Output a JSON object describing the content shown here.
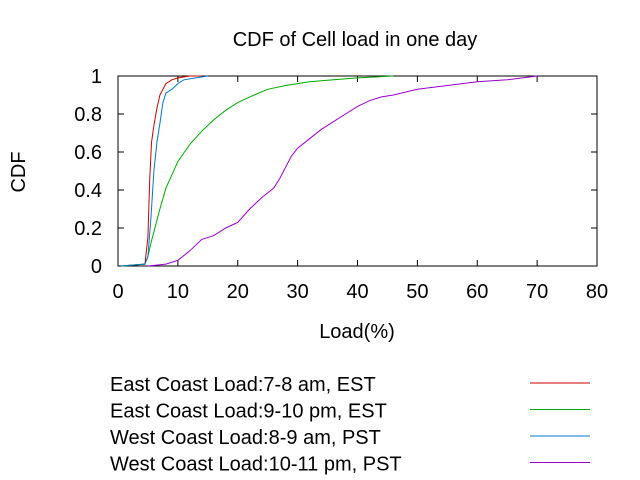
{
  "chart_data": {
    "type": "line",
    "title": "CDF of Cell load in one day",
    "xlabel": "Load(%)",
    "ylabel": "CDF",
    "xlim": [
      0,
      80
    ],
    "ylim": [
      0,
      1
    ],
    "x_ticks": [
      "0",
      "10",
      "20",
      "30",
      "40",
      "50",
      "60",
      "70",
      "80"
    ],
    "y_ticks": [
      "0",
      "0.2",
      "0.4",
      "0.6",
      "0.8",
      "1"
    ],
    "x_tick_values": [
      0,
      10,
      20,
      30,
      40,
      50,
      60,
      70,
      80
    ],
    "y_tick_values": [
      0,
      0.2,
      0.4,
      0.6,
      0.8,
      1
    ],
    "grid": false,
    "legend_position": "bottom",
    "series": [
      {
        "name": "East Coast Load:7-8 am, EST",
        "color": "#cc0000",
        "points": [
          [
            0.5,
            0
          ],
          [
            4.5,
            0.01
          ],
          [
            5,
            0.15
          ],
          [
            5.3,
            0.45
          ],
          [
            5.6,
            0.65
          ],
          [
            6,
            0.74
          ],
          [
            6.5,
            0.83
          ],
          [
            7,
            0.9
          ],
          [
            7.5,
            0.93
          ],
          [
            8,
            0.96
          ],
          [
            9,
            0.98
          ],
          [
            10,
            0.99
          ],
          [
            12,
            1
          ],
          [
            14,
            1
          ]
        ]
      },
      {
        "name": "East Coast Load:9-10 pm, EST",
        "color": "#00aa00",
        "points": [
          [
            0.5,
            0
          ],
          [
            4.5,
            0.01
          ],
          [
            5,
            0.05
          ],
          [
            5.5,
            0.12
          ],
          [
            6,
            0.18
          ],
          [
            7,
            0.3
          ],
          [
            8,
            0.41
          ],
          [
            9,
            0.48
          ],
          [
            10,
            0.55
          ],
          [
            12,
            0.64
          ],
          [
            14,
            0.71
          ],
          [
            16,
            0.77
          ],
          [
            18,
            0.82
          ],
          [
            20,
            0.86
          ],
          [
            22,
            0.89
          ],
          [
            25,
            0.93
          ],
          [
            28,
            0.95
          ],
          [
            32,
            0.97
          ],
          [
            36,
            0.98
          ],
          [
            40,
            0.99
          ],
          [
            46,
            1
          ]
        ]
      },
      {
        "name": "West Coast Load:8-9 am, PST",
        "color": "#0077cc",
        "points": [
          [
            0.5,
            0
          ],
          [
            4.5,
            0.01
          ],
          [
            5,
            0.05
          ],
          [
            5.5,
            0.25
          ],
          [
            6,
            0.5
          ],
          [
            6.5,
            0.65
          ],
          [
            7,
            0.75
          ],
          [
            7.5,
            0.86
          ],
          [
            8,
            0.91
          ],
          [
            9,
            0.93
          ],
          [
            10,
            0.96
          ],
          [
            11,
            0.98
          ],
          [
            13,
            0.99
          ],
          [
            15,
            1
          ]
        ]
      },
      {
        "name": "West Coast Load:10-11 pm, PST",
        "color": "#9900cc",
        "points": [
          [
            5,
            0
          ],
          [
            8,
            0.01
          ],
          [
            10,
            0.03
          ],
          [
            12,
            0.08
          ],
          [
            14,
            0.14
          ],
          [
            16,
            0.16
          ],
          [
            18,
            0.2
          ],
          [
            20,
            0.23
          ],
          [
            22,
            0.3
          ],
          [
            24,
            0.36
          ],
          [
            26,
            0.41
          ],
          [
            27,
            0.46
          ],
          [
            28,
            0.52
          ],
          [
            29,
            0.58
          ],
          [
            30,
            0.62
          ],
          [
            32,
            0.67
          ],
          [
            34,
            0.72
          ],
          [
            36,
            0.76
          ],
          [
            38,
            0.8
          ],
          [
            40,
            0.84
          ],
          [
            42,
            0.87
          ],
          [
            44,
            0.89
          ],
          [
            46,
            0.9
          ],
          [
            50,
            0.93
          ],
          [
            55,
            0.95
          ],
          [
            60,
            0.97
          ],
          [
            65,
            0.98
          ],
          [
            70,
            1
          ]
        ]
      }
    ]
  }
}
